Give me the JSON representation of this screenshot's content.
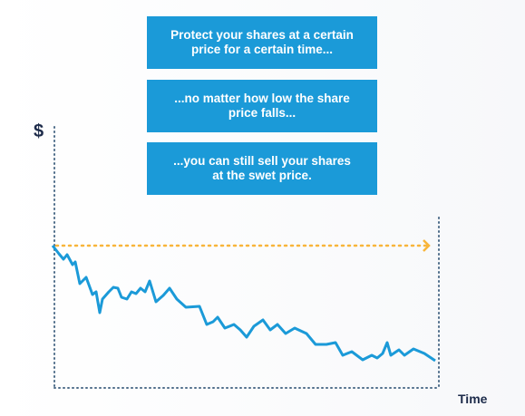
{
  "boxes": [
    {
      "lines": [
        "Protect your shares at a certain",
        "price for a certain time..."
      ]
    },
    {
      "lines": [
        "...no matter how low the share",
        "price falls..."
      ]
    },
    {
      "lines": [
        "...you can still sell your shares",
        "at the swet price."
      ]
    }
  ],
  "y_axis_label": "$",
  "x_axis_label": "Time"
}
